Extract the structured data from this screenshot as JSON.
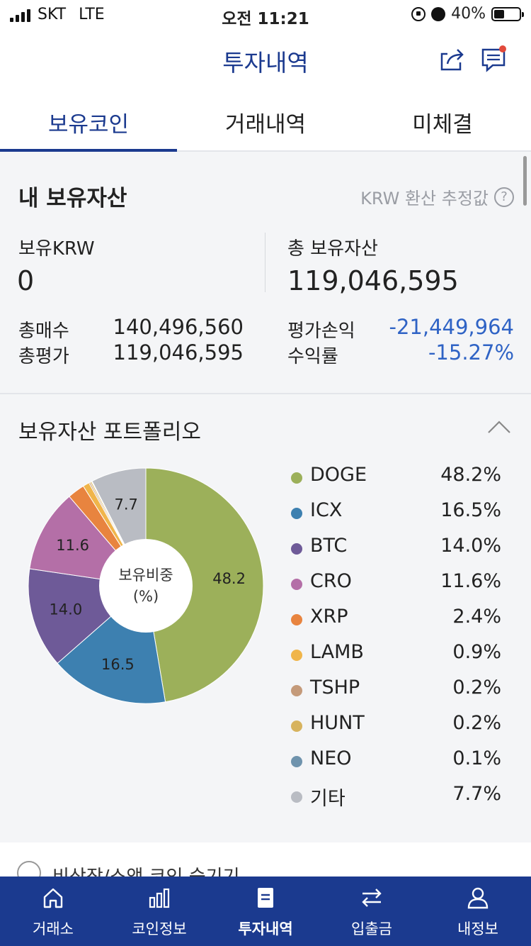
{
  "status_bar": {
    "carrier": "SKT",
    "network": "LTE",
    "time": "오전 11:21",
    "battery": "40%"
  },
  "header": {
    "title": "투자내역",
    "icons": [
      "share-icon",
      "chat-icon"
    ]
  },
  "tabs": [
    {
      "label": "보유코인",
      "active": true
    },
    {
      "label": "거래내역",
      "active": false
    },
    {
      "label": "미체결",
      "active": false
    }
  ],
  "assets": {
    "title": "내 보유자산",
    "krw_note": "KRW 환산 추정값",
    "krw_label": "보유KRW",
    "krw_value": "0",
    "total_label": "총 보유자산",
    "total_value": "119,046,595",
    "buy_label": "총매수",
    "buy_value": "140,496,560",
    "eval_label": "총평가",
    "eval_value": "119,046,595",
    "pnl_label": "평가손익",
    "pnl_value": "-21,449,964",
    "rate_label": "수익률",
    "rate_value": "-15.27%",
    "negative_color": "#2f63c5"
  },
  "portfolio": {
    "title": "보유자산 포트폴리오",
    "center_label_1": "보유비중",
    "center_label_2": "(%)",
    "slice_labels": [
      "48.2",
      "16.5",
      "14.0",
      "11.6",
      "7.7"
    ]
  },
  "chart_data": {
    "type": "pie",
    "categories": [
      "DOGE",
      "ICX",
      "BTC",
      "CRO",
      "XRP",
      "LAMB",
      "TSHP",
      "HUNT",
      "NEO",
      "기타"
    ],
    "values": [
      48.2,
      16.5,
      14.0,
      11.6,
      2.4,
      0.9,
      0.2,
      0.2,
      0.1,
      7.7
    ],
    "labels": [
      "48.2%",
      "16.5%",
      "14.0%",
      "11.6%",
      "2.4%",
      "0.9%",
      "0.2%",
      "0.2%",
      "0.1%",
      "7.7%"
    ],
    "colors": [
      "#9cb05a",
      "#3d80b0",
      "#6e5a98",
      "#b46fa7",
      "#e8843f",
      "#f0b54a",
      "#c49a7a",
      "#d7b35e",
      "#6f93ad",
      "#b9bcc3"
    ],
    "donut": true,
    "legend_position": "right"
  },
  "bottom_card": {
    "text": "비상장/소액 코인 숨기기"
  },
  "bottom_nav": [
    {
      "label": "거래소",
      "icon": "home-icon",
      "active": false
    },
    {
      "label": "코인정보",
      "icon": "bar-chart-icon",
      "active": false
    },
    {
      "label": "투자내역",
      "icon": "document-icon",
      "active": true
    },
    {
      "label": "입출금",
      "icon": "transfer-icon",
      "active": false
    },
    {
      "label": "내정보",
      "icon": "user-icon",
      "active": false
    }
  ]
}
